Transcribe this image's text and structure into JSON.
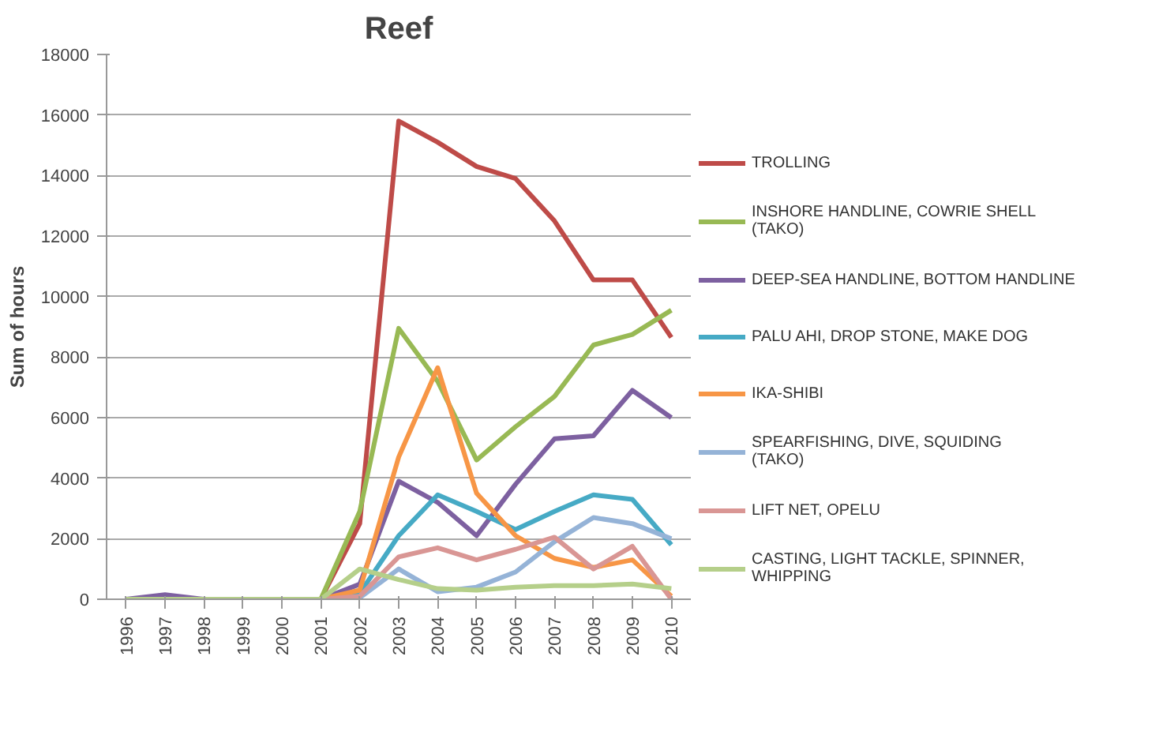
{
  "chart_data": {
    "type": "line",
    "title": "Reef",
    "ylabel": "Sum of hours",
    "categories": [
      "1996",
      "1997",
      "1998",
      "1999",
      "2000",
      "2001",
      "2002",
      "2003",
      "2004",
      "2005",
      "2006",
      "2007",
      "2008",
      "2009",
      "2010"
    ],
    "ylim": [
      0,
      18000
    ],
    "yticks": [
      0,
      2000,
      4000,
      6000,
      8000,
      10000,
      12000,
      14000,
      16000,
      18000
    ],
    "grid": "y",
    "legend": "right",
    "marker": "none",
    "line_style": "solid",
    "series": [
      {
        "name": "TROLLING",
        "color": "#be4b48",
        "values": [
          null,
          null,
          null,
          null,
          null,
          0,
          2500,
          15800,
          15100,
          14300,
          13900,
          12500,
          10550,
          10550,
          8650
        ]
      },
      {
        "name": "INSHORE HANDLINE, COWRIE SHELL (TAKO)",
        "color": "#98b954",
        "values": [
          null,
          null,
          null,
          null,
          null,
          0,
          2900,
          8950,
          7200,
          4600,
          5700,
          6700,
          8400,
          8750,
          9550
        ]
      },
      {
        "name": "DEEP-SEA HANDLINE, BOTTOM HANDLINE",
        "color": "#7d60a0",
        "values": [
          0,
          150,
          0,
          null,
          null,
          0,
          500,
          3900,
          3200,
          2100,
          3800,
          5300,
          5400,
          6900,
          6000
        ]
      },
      {
        "name": "PALU AHI, DROP STONE, MAKE DOG",
        "color": "#46aac5",
        "values": [
          null,
          null,
          null,
          null,
          null,
          0,
          200,
          2100,
          3450,
          2900,
          2300,
          2900,
          3450,
          3300,
          1800
        ]
      },
      {
        "name": "IKA-SHIBI",
        "color": "#f79646",
        "values": [
          null,
          null,
          null,
          null,
          null,
          0,
          300,
          4700,
          7650,
          3500,
          2100,
          1350,
          1050,
          1300,
          100
        ]
      },
      {
        "name": "SPEARFISHING, DIVE, SQUIDING (TAKO)",
        "color": "#95b3d7",
        "values": [
          null,
          null,
          null,
          null,
          null,
          0,
          50,
          1000,
          250,
          400,
          900,
          1900,
          2700,
          2500,
          2000
        ]
      },
      {
        "name": "LIFT NET, OPELU",
        "color": "#d99694",
        "values": [
          null,
          null,
          null,
          null,
          null,
          0,
          100,
          1400,
          1700,
          1300,
          1650,
          2050,
          1000,
          1750,
          0
        ]
      },
      {
        "name": "CASTING, LIGHT TACKLE, SPINNER, WHIPPING",
        "color": "#b5cf8a",
        "values": [
          0,
          0,
          0,
          0,
          0,
          0,
          1000,
          650,
          350,
          300,
          400,
          450,
          450,
          500,
          350
        ]
      }
    ]
  }
}
